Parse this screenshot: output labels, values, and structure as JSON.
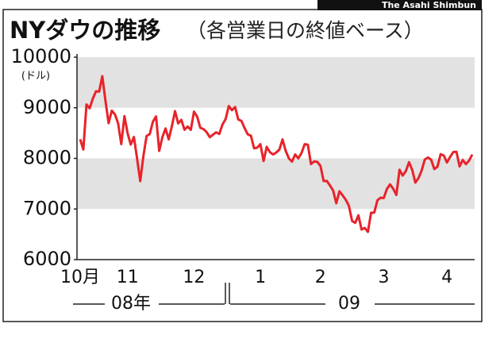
{
  "chart_data": {
    "type": "line",
    "title": "NYダウの推移",
    "subtitle": "（各営業日の終値ベース）",
    "credit": "The Asahi Shimbun",
    "y_unit": "(ドル)",
    "year_labels": [
      "08年",
      "09"
    ],
    "color": "#e8232a",
    "shaded_bands": true,
    "ylim": [
      6000,
      10000
    ],
    "yticks": [
      6000,
      7000,
      8000,
      9000,
      10000
    ],
    "categories": [
      "10月",
      null,
      null,
      null,
      null,
      null,
      null,
      null,
      null,
      null,
      null,
      null,
      null,
      null,
      null,
      "11",
      null,
      null,
      null,
      null,
      null,
      null,
      null,
      null,
      null,
      null,
      null,
      null,
      null,
      null,
      null,
      null,
      null,
      null,
      null,
      null,
      "12",
      null,
      null,
      null,
      null,
      null,
      null,
      null,
      null,
      null,
      null,
      null,
      null,
      null,
      null,
      null,
      null,
      null,
      null,
      null,
      null,
      "1",
      null,
      null,
      null,
      null,
      null,
      null,
      null,
      null,
      null,
      null,
      null,
      null,
      null,
      null,
      null,
      null,
      null,
      null,
      "2",
      null,
      null,
      null,
      null,
      null,
      null,
      null,
      null,
      null,
      null,
      null,
      null,
      null,
      null,
      null,
      null,
      null,
      null,
      null,
      "3",
      null,
      null,
      null,
      null,
      null,
      null,
      null,
      null,
      null,
      null,
      null,
      null,
      null,
      null,
      null,
      null,
      null,
      null,
      null,
      "4",
      null,
      null,
      null,
      null,
      null,
      null,
      null,
      null
    ],
    "values": [
      8378,
      8175,
      9065,
      8990,
      9180,
      9325,
      9319,
      9625,
      9139,
      8695,
      8943,
      8870,
      8693,
      8282,
      8835,
      8497,
      8273,
      8424,
      7997,
      7552,
      8046,
      8443,
      8479,
      8726,
      8829,
      8149,
      8419,
      8591,
      8376,
      8635,
      8934,
      8691,
      8761,
      8565,
      8629,
      8564,
      8924,
      8824,
      8604,
      8579,
      8519,
      8419,
      8468,
      8515,
      8483,
      8668,
      8776,
      9034,
      8952,
      9015,
      8769,
      8742,
      8599,
      8474,
      8448,
      8200,
      8212,
      8281,
      7949,
      8228,
      8123,
      8077,
      8116,
      8174,
      8375,
      8149,
      8000,
      7936,
      8078,
      8000,
      8106,
      8280,
      8270,
      7888,
      7939,
      7932,
      7850,
      7552,
      7555,
      7465,
      7365,
      7114,
      7350,
      7270,
      7182,
      7062,
      6763,
      6726,
      6875,
      6594,
      6626,
      6547,
      6926,
      6930,
      7170,
      7223,
      7216,
      7395,
      7486,
      7400,
      7278,
      7776,
      7660,
      7749,
      7924,
      7776,
      7522,
      7609,
      7761,
      7978,
      8017,
      7975,
      7789,
      7837,
      8083,
      8057,
      7920,
      8029,
      8125,
      8131,
      7841,
      7969,
      7886,
      7957,
      8076
    ]
  }
}
